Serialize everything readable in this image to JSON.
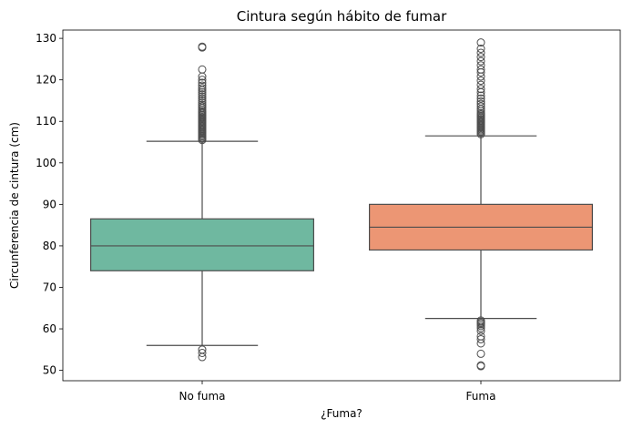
{
  "chart_data": {
    "type": "box",
    "title": "Cintura según hábito de fumar",
    "xlabel": "¿Fuma?",
    "ylabel": "Circunferencia de cintura (cm)",
    "ylim": [
      47.5,
      132
    ],
    "yticks": [
      50,
      60,
      70,
      80,
      90,
      100,
      110,
      120,
      130
    ],
    "categories": [
      "No fuma",
      "Fuma"
    ],
    "colors": [
      "#6fb8a0",
      "#ec9674"
    ],
    "line_color": "#4d4d4d",
    "grid": false,
    "boxes": [
      {
        "category": "No fuma",
        "q1": 74,
        "median": 80,
        "q3": 86.5,
        "whisker_low": 56,
        "whisker_high": 105.2,
        "outliers": [
          53.2,
          54.2,
          55.0,
          105.5,
          105.8,
          106.1,
          106.4,
          106.7,
          107.0,
          107.3,
          107.6,
          107.9,
          108.2,
          108.5,
          108.8,
          109.1,
          109.4,
          109.7,
          110.0,
          110.3,
          110.6,
          110.9,
          111.2,
          111.5,
          111.8,
          112.1,
          112.4,
          112.8,
          113.2,
          113.6,
          114.0,
          114.5,
          115.0,
          115.5,
          116.0,
          116.5,
          117.0,
          117.5,
          118.0,
          118.6,
          119.3,
          120.0,
          120.8,
          122.5,
          127.8,
          128.0
        ]
      },
      {
        "category": "Fuma",
        "q1": 79,
        "median": 84.5,
        "q3": 90,
        "whisker_low": 62.5,
        "whisker_high": 106.5,
        "outliers": [
          51.0,
          51.2,
          54.0,
          56.5,
          57.5,
          58.2,
          59.5,
          60.2,
          60.7,
          61.1,
          61.4,
          61.7,
          62.0,
          106.9,
          107.2,
          107.5,
          107.8,
          108.1,
          108.4,
          108.7,
          109.0,
          109.3,
          109.6,
          109.9,
          110.2,
          110.5,
          110.8,
          111.1,
          111.4,
          111.7,
          112.0,
          112.5,
          113.0,
          113.6,
          114.2,
          114.8,
          115.5,
          116.2,
          117.0,
          117.8,
          118.8,
          119.8,
          120.8,
          121.8,
          122.5,
          123.5,
          124.5,
          125.5,
          126.5,
          127.5,
          129.0
        ]
      }
    ]
  }
}
